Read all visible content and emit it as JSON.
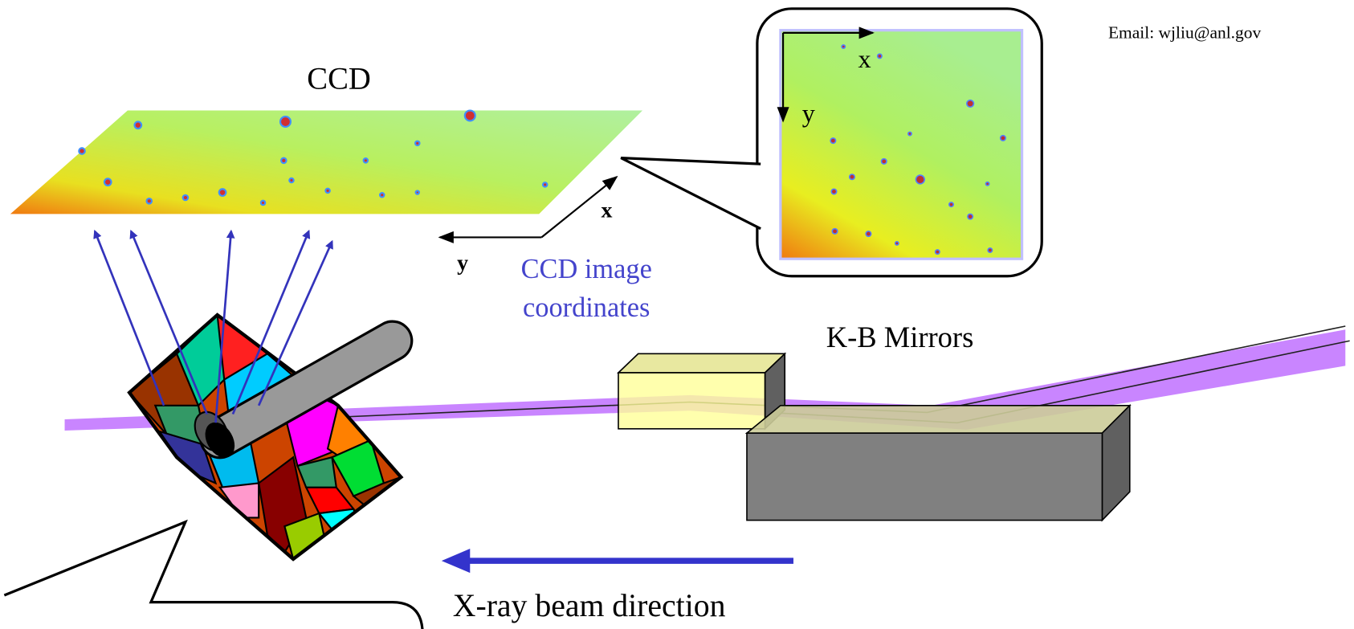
{
  "email": "Email: wjliu@anl.gov",
  "ccd": {
    "label": "CCD"
  },
  "inset": {
    "x": "x",
    "y": "y"
  },
  "coordinates": {
    "x": "x",
    "y": "y",
    "caption": [
      "CCD image",
      "coordinates"
    ]
  },
  "mirrors": {
    "label": "K-B Mirrors"
  },
  "beam": {
    "label": "X-ray beam direction"
  }
}
